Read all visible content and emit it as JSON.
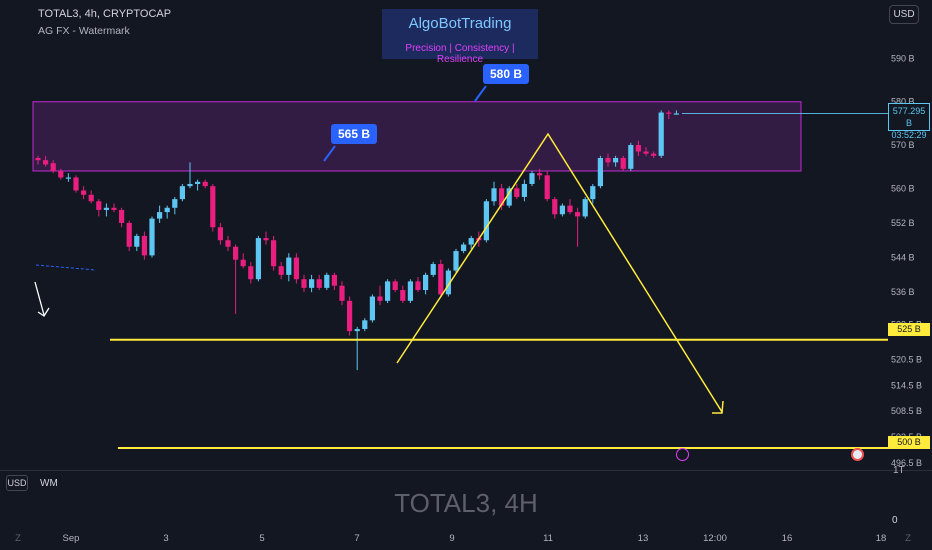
{
  "header": {
    "title": "TOTAL3, 4h, CRYPTOCAP",
    "subtitle": "AG FX - Watermark"
  },
  "currency_button": "USD",
  "brand": {
    "name": "AlgoBotTrading",
    "tagline": "Precision  | Consistency | Resilience"
  },
  "callouts": {
    "upper": "580 B",
    "lower": "565 B"
  },
  "price_tag": {
    "value": "577.295 B",
    "countdown": "03:52:29"
  },
  "level_tags": {
    "upper": "525 B",
    "lower": "500 B"
  },
  "bottom_bar": {
    "usd": "USD",
    "wm": "WM"
  },
  "watermark": "TOTAL3, 4H",
  "timeframe_label": "1T",
  "zero_label": "0",
  "colors": {
    "background": "#131722",
    "bull": "#5dc6f2",
    "bear": "#e91e7e",
    "zone_border": "#c22ad4",
    "zone_fill": "#3a1d4a",
    "level_line": "#ffeb3b",
    "callout": "#2962ff"
  },
  "chart_data": {
    "type": "candlestick",
    "y_unit": "B",
    "ylim": [
      492,
      598
    ],
    "y_ticks": [
      "590 B",
      "580 B",
      "570 B",
      "560 B",
      "552 B",
      "544 B",
      "536 B",
      "528.5 B",
      "520.5 B",
      "514.5 B",
      "508.5 B",
      "502.5 B",
      "496.5 B"
    ],
    "y_tick_values": [
      590,
      580,
      570,
      560,
      552,
      544,
      536,
      528.5,
      520.5,
      514.5,
      508.5,
      502.5,
      496.5
    ],
    "x_ticks": [
      "Z",
      "Sep",
      "3",
      "5",
      "7",
      "9",
      "11",
      "13",
      "12:00",
      "16",
      "18",
      "Z"
    ],
    "resistance_zone": [
      564,
      580
    ],
    "horizontal_levels": [
      525,
      500
    ],
    "last_price": 577.295,
    "ohlc": [
      [
        567.0,
        567.5,
        565.5,
        566.5
      ],
      [
        566.5,
        567.5,
        565.0,
        565.5
      ],
      [
        565.8,
        566.5,
        563.5,
        564.0
      ],
      [
        564.0,
        564.5,
        562.0,
        562.5
      ],
      [
        562.5,
        563.5,
        561.5,
        562.5
      ],
      [
        562.5,
        563.0,
        559.0,
        559.5
      ],
      [
        559.5,
        560.5,
        557.5,
        558.5
      ],
      [
        558.5,
        559.5,
        556.5,
        557.0
      ],
      [
        557.0,
        557.5,
        553.5,
        555.0
      ],
      [
        555.0,
        556.5,
        553.5,
        555.5
      ],
      [
        555.5,
        556.5,
        554.5,
        555.0
      ],
      [
        555.0,
        555.5,
        551.0,
        552.0
      ],
      [
        552.0,
        552.5,
        545.5,
        546.5
      ],
      [
        546.5,
        549.5,
        545.5,
        549.0
      ],
      [
        549.0,
        550.0,
        543.5,
        544.5
      ],
      [
        544.5,
        553.5,
        544.0,
        553.0
      ],
      [
        553.0,
        556.0,
        552.0,
        554.5
      ],
      [
        554.5,
        556.0,
        553.0,
        555.5
      ],
      [
        555.5,
        558.0,
        554.0,
        557.5
      ],
      [
        557.5,
        561.0,
        557.0,
        560.5
      ],
      [
        560.5,
        566.0,
        560.0,
        561.0
      ],
      [
        561.0,
        562.0,
        559.5,
        561.5
      ],
      [
        561.5,
        562.0,
        560.0,
        560.5
      ],
      [
        560.5,
        561.0,
        550.0,
        551.0
      ],
      [
        551.0,
        552.0,
        547.0,
        548.0
      ],
      [
        548.0,
        549.0,
        545.5,
        546.5
      ],
      [
        546.5,
        547.0,
        531.0,
        543.5
      ],
      [
        543.5,
        545.0,
        541.5,
        542.0
      ],
      [
        542.0,
        543.0,
        538.0,
        539.0
      ],
      [
        539.0,
        549.0,
        538.5,
        548.5
      ],
      [
        548.5,
        550.0,
        547.0,
        548.0
      ],
      [
        548.0,
        549.0,
        541.0,
        542.0
      ],
      [
        542.0,
        543.0,
        539.0,
        540.0
      ],
      [
        540.0,
        545.0,
        538.5,
        544.0
      ],
      [
        544.0,
        545.0,
        538.0,
        539.0
      ],
      [
        539.0,
        540.0,
        536.0,
        537.0
      ],
      [
        537.0,
        540.0,
        536.0,
        539.0
      ],
      [
        539.0,
        540.0,
        536.5,
        537.0
      ],
      [
        537.0,
        540.5,
        536.5,
        540.0
      ],
      [
        540.0,
        540.5,
        536.5,
        537.5
      ],
      [
        537.5,
        538.5,
        533.0,
        534.0
      ],
      [
        534.0,
        535.0,
        526.0,
        527.0
      ],
      [
        527.0,
        528.0,
        518.0,
        527.5
      ],
      [
        527.5,
        530.0,
        527.0,
        529.5
      ],
      [
        529.5,
        535.5,
        529.0,
        535.0
      ],
      [
        535.0,
        537.5,
        533.0,
        534.0
      ],
      [
        534.0,
        539.0,
        533.5,
        538.5
      ],
      [
        538.5,
        539.0,
        536.0,
        536.5
      ],
      [
        536.5,
        537.5,
        533.5,
        534.0
      ],
      [
        534.0,
        539.0,
        533.5,
        538.5
      ],
      [
        538.5,
        539.5,
        536.0,
        536.5
      ],
      [
        536.5,
        540.5,
        535.5,
        540.0
      ],
      [
        540.0,
        543.0,
        539.5,
        542.5
      ],
      [
        542.5,
        543.5,
        535.0,
        535.5
      ],
      [
        535.5,
        541.5,
        535.0,
        541.0
      ],
      [
        541.0,
        546.0,
        540.5,
        545.5
      ],
      [
        545.5,
        547.5,
        545.0,
        547.0
      ],
      [
        547.0,
        549.0,
        546.0,
        548.5
      ],
      [
        548.5,
        550.0,
        546.5,
        548.0
      ],
      [
        548.0,
        557.5,
        547.5,
        557.0
      ],
      [
        557.0,
        561.5,
        556.0,
        560.0
      ],
      [
        560.0,
        561.0,
        555.0,
        556.0
      ],
      [
        556.0,
        560.5,
        555.5,
        560.0
      ],
      [
        560.0,
        561.0,
        557.5,
        558.0
      ],
      [
        558.0,
        562.0,
        557.0,
        561.0
      ],
      [
        561.0,
        564.0,
        560.5,
        563.5
      ],
      [
        563.5,
        564.5,
        562.0,
        563.0
      ],
      [
        563.0,
        564.0,
        557.0,
        557.5
      ],
      [
        557.5,
        558.0,
        553.0,
        554.0
      ],
      [
        554.0,
        556.5,
        553.5,
        556.0
      ],
      [
        556.0,
        557.5,
        554.0,
        554.5
      ],
      [
        554.5,
        555.5,
        546.5,
        553.5
      ],
      [
        553.5,
        558.0,
        553.0,
        557.5
      ],
      [
        557.5,
        561.0,
        556.5,
        560.5
      ],
      [
        560.5,
        567.5,
        560.0,
        567.0
      ],
      [
        567.0,
        568.0,
        565.0,
        566.0
      ],
      [
        566.0,
        567.5,
        565.0,
        567.0
      ],
      [
        567.0,
        567.5,
        564.0,
        564.5
      ],
      [
        564.5,
        570.5,
        564.0,
        570.0
      ],
      [
        570.0,
        571.0,
        567.5,
        568.5
      ],
      [
        568.5,
        569.5,
        567.5,
        568.0
      ],
      [
        568.0,
        568.5,
        567.0,
        567.5
      ],
      [
        567.5,
        578.0,
        567.0,
        577.5
      ],
      [
        577.5,
        578.0,
        576.0,
        577.3
      ],
      [
        577.3,
        578.0,
        577.0,
        577.3
      ]
    ]
  }
}
